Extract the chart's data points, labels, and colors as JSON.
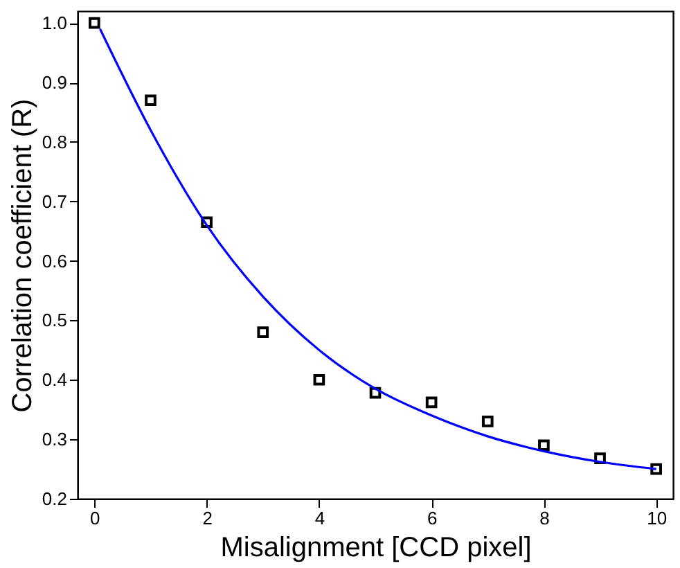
{
  "chart_data": {
    "type": "scatter",
    "xlabel": "Misalignment [CCD pixel]",
    "ylabel": "Correlation coefficient (R)",
    "xlim": [
      -0.3,
      10.3
    ],
    "ylim": [
      0.2,
      1.02
    ],
    "xticks": [
      0,
      2,
      4,
      6,
      8,
      10
    ],
    "yticks": [
      0.2,
      0.3,
      0.4,
      0.5,
      0.6,
      0.7,
      0.8,
      0.9,
      {
        "value": 1.0,
        "label": "1.0"
      }
    ],
    "grid": false,
    "series": [
      {
        "color": "#000000",
        "marker": "square",
        "x": [
          0,
          1,
          2,
          3,
          4,
          5,
          6,
          7,
          8,
          9,
          10
        ],
        "values": [
          1.0,
          0.87,
          0.665,
          0.48,
          0.4,
          0.378,
          0.362,
          0.33,
          0.29,
          0.268,
          0.25
        ]
      },
      {
        "type": "line",
        "color": "#0000ff",
        "line_style": "solid",
        "marker": "none",
        "x": [
          0.1,
          1,
          2,
          3,
          4,
          5,
          6,
          7,
          8,
          9,
          10
        ],
        "values": [
          0.99,
          0.82,
          0.66,
          0.54,
          0.45,
          0.385,
          0.34,
          0.305,
          0.28,
          0.262,
          0.25
        ]
      }
    ]
  }
}
